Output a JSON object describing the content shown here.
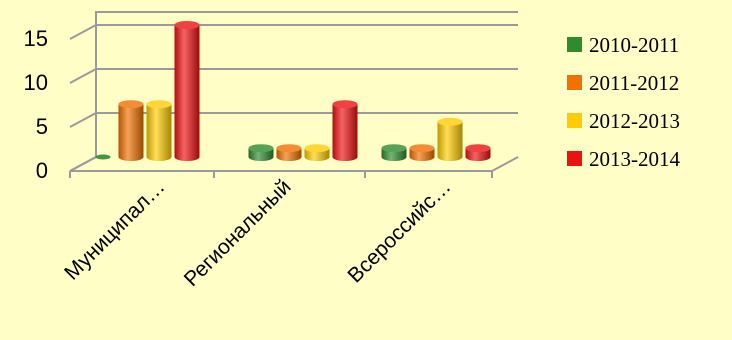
{
  "chart_data": {
    "type": "bar",
    "style": "3d-cylinder",
    "categories": [
      "Муниципал…",
      "Региональный",
      "Всероссийс…"
    ],
    "series": [
      {
        "name": "2010-2011",
        "color": "#2E8B2E",
        "values": [
          0,
          1,
          1
        ]
      },
      {
        "name": "2011-2012",
        "color": "#F07000",
        "values": [
          6,
          1,
          1
        ]
      },
      {
        "name": "2012-2013",
        "color": "#FFCC00",
        "values": [
          6,
          1,
          4
        ]
      },
      {
        "name": "2013-2014",
        "color": "#EE1111",
        "values": [
          15,
          6,
          1
        ]
      }
    ],
    "yticks": [
      0,
      5,
      10,
      15
    ],
    "ylim": [
      0,
      15
    ],
    "grid": true,
    "legend": "right",
    "title": "",
    "xlabel": "",
    "ylabel": ""
  }
}
